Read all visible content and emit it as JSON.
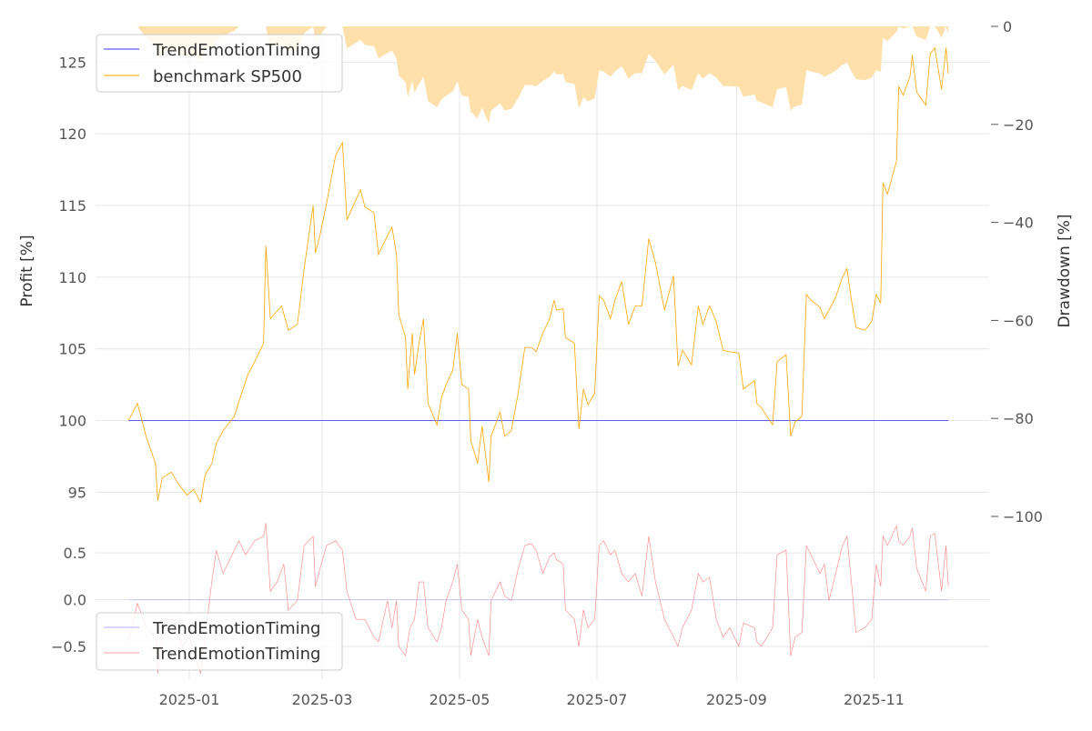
{
  "chart_data": [
    {
      "type": "line",
      "panel": "top",
      "ylabel": "Profit [%]",
      "ylabel_right": "Drawdown [%]",
      "x_unit": "days since 2025-01-01",
      "ylim": [
        93.5,
        127.5
      ],
      "ylim_right": [
        -100,
        0
      ],
      "yticks": [
        95,
        100,
        105,
        110,
        115,
        120,
        125
      ],
      "yticks_right": [
        0,
        -20,
        -40,
        -60,
        -80,
        -100
      ],
      "ytick_labels_right": [
        "0",
        "−20",
        "−40",
        "−60",
        "−80",
        "−100"
      ],
      "grid": true,
      "legend_position": "top-left",
      "legend": [
        "TrendEmotionTiming",
        "benchmark SP500"
      ],
      "series": [
        {
          "name": "TrendEmotionTiming",
          "color": "#3333ff",
          "x": [
            -27,
            337
          ],
          "values": [
            100,
            100
          ]
        },
        {
          "name": "benchmark SP500",
          "color": "#ffa500",
          "x": [
            -27,
            -23,
            -19,
            -15,
            -14,
            -12,
            -8,
            -4,
            -1,
            2,
            5,
            7,
            10,
            12,
            15,
            20,
            22,
            26,
            29,
            33,
            34,
            36,
            41,
            44,
            48,
            51,
            55,
            56,
            58,
            61,
            65,
            68,
            70,
            76,
            78,
            82,
            84,
            88,
            90,
            92,
            93,
            96,
            97,
            99,
            100,
            102,
            104,
            106,
            110,
            112,
            114,
            117,
            119,
            121,
            124,
            125,
            128,
            130,
            133,
            134,
            138,
            140,
            143,
            146,
            149,
            152,
            154,
            157,
            160,
            162,
            163,
            166,
            167,
            171,
            173,
            175,
            177,
            180,
            182,
            184,
            187,
            189,
            192,
            195,
            198,
            201,
            204,
            207,
            211,
            215,
            217,
            219,
            223,
            226,
            228,
            231,
            234,
            237,
            240,
            244,
            246,
            251,
            252,
            254,
            259,
            261,
            265,
            267,
            269,
            272,
            274,
            276,
            280,
            282,
            284,
            287,
            290,
            292,
            294,
            296,
            300,
            303,
            305,
            307,
            308,
            310,
            314,
            315,
            317,
            320,
            321,
            323,
            327,
            329,
            331,
            334,
            336,
            337
          ],
          "values": [
            100,
            101.2,
            98.8,
            97,
            94.4,
            96,
            96.4,
            95.4,
            94.8,
            95.2,
            94.3,
            96.2,
            97,
            98.4,
            99.3,
            100.3,
            101.3,
            103.2,
            104.1,
            105.4,
            112.2,
            107.1,
            108,
            106.3,
            106.7,
            110.6,
            115,
            111.7,
            112.9,
            115.2,
            118.5,
            119.4,
            114,
            116.1,
            114.9,
            114.5,
            111.6,
            112.9,
            113.5,
            111.6,
            107.4,
            105.8,
            102.2,
            106.1,
            103.2,
            105.4,
            107.1,
            101.2,
            99.7,
            101.6,
            102.5,
            103.5,
            106.1,
            102.5,
            102.2,
            98.6,
            97,
            99.6,
            95.7,
            98.9,
            100.6,
            98.9,
            99.3,
            101.9,
            105.1,
            105.1,
            104.8,
            106.1,
            107.1,
            108.4,
            107.7,
            107.8,
            105.8,
            105.4,
            99.4,
            102.2,
            101.1,
            101.9,
            108.7,
            108.4,
            107.1,
            108.4,
            109.7,
            106.7,
            108,
            108,
            112.7,
            111,
            107.7,
            110.1,
            103.8,
            104.9,
            103.9,
            108,
            106.7,
            108,
            106.9,
            104.9,
            104.8,
            104.7,
            102.2,
            102.8,
            101.2,
            100.9,
            99.7,
            104.1,
            104.6,
            98.9,
            99.9,
            100.3,
            108.8,
            108.4,
            107.9,
            107.1,
            107.7,
            108.6,
            110,
            110.6,
            108.4,
            106.5,
            106.3,
            106.9,
            108.8,
            108.2,
            116.6,
            115.8,
            118.1,
            123.3,
            122.7,
            124,
            125.5,
            122.9,
            122,
            125.6,
            126,
            123.1,
            126,
            124.2
          ]
        },
        {
          "name": "drawdown (benchmark SP500)",
          "color": "#ffe0aa",
          "derived_from": "benchmark SP500"
        }
      ]
    },
    {
      "type": "line",
      "panel": "bottom",
      "x_unit": "days since 2025-01-01",
      "ylim": [
        -0.85,
        0.92
      ],
      "yticks": [
        -0.5,
        0.0,
        0.5
      ],
      "ytick_labels": [
        "−0.5",
        "0.0",
        "0.5"
      ],
      "xticks": [
        0,
        59,
        120,
        181,
        243,
        304
      ],
      "xtick_labels": [
        "2025-01",
        "2025-03",
        "2025-05",
        "2025-07",
        "2025-09",
        "2025-11"
      ],
      "grid": true,
      "legend_position": "bottom-left",
      "legend": [
        "TrendEmotionTiming",
        "TrendEmotionTiming"
      ],
      "series": [
        {
          "name": "TrendEmotionTiming",
          "color": "#c8c8ff",
          "x": [
            -27,
            337
          ],
          "values": [
            0,
            0
          ]
        },
        {
          "name": "TrendEmotionTiming",
          "color": "#ff8080",
          "x": [
            -27,
            -23,
            -19,
            -15,
            -14,
            -11,
            -7,
            -3,
            0,
            5,
            7,
            10,
            12,
            15,
            19,
            22,
            25,
            29,
            33,
            34,
            36,
            39,
            42,
            44,
            48,
            51,
            55,
            56,
            58,
            61,
            65,
            68,
            70,
            74,
            78,
            82,
            84,
            88,
            90,
            92,
            93,
            96,
            98,
            100,
            102,
            104,
            106,
            110,
            112,
            114,
            117,
            119,
            121,
            124,
            125,
            128,
            130,
            133,
            134,
            138,
            140,
            143,
            146,
            149,
            152,
            154,
            157,
            160,
            162,
            163,
            166,
            167,
            171,
            173,
            175,
            177,
            180,
            182,
            184,
            187,
            189,
            192,
            195,
            198,
            201,
            204,
            207,
            211,
            215,
            217,
            219,
            223,
            226,
            228,
            231,
            234,
            237,
            240,
            244,
            246,
            251,
            252,
            254,
            259,
            261,
            265,
            267,
            269,
            272,
            274,
            276,
            280,
            282,
            284,
            287,
            290,
            292,
            294,
            296,
            300,
            303,
            305,
            307,
            308,
            310,
            314,
            315,
            317,
            320,
            321,
            323,
            327,
            329,
            331,
            334,
            336,
            337
          ],
          "values": [
            -0.45,
            -0.04,
            -0.3,
            -0.4,
            -0.79,
            -0.21,
            -0.21,
            -0.5,
            -0.4,
            -0.79,
            -0.4,
            0.19,
            0.53,
            0.28,
            0.48,
            0.63,
            0.48,
            0.63,
            0.68,
            0.82,
            0.09,
            0.19,
            0.38,
            -0.11,
            -0.01,
            0.58,
            0.68,
            0.14,
            0.33,
            0.58,
            0.63,
            0.53,
            0.09,
            -0.21,
            -0.21,
            -0.4,
            -0.45,
            -0.01,
            -0.3,
            -0.01,
            -0.5,
            -0.6,
            -0.3,
            -0.21,
            0.19,
            0.19,
            -0.3,
            -0.45,
            -0.3,
            -0.01,
            0.19,
            0.38,
            -0.11,
            -0.21,
            -0.6,
            -0.21,
            -0.4,
            -0.6,
            -0.01,
            0.19,
            0.04,
            -0.01,
            0.33,
            0.58,
            0.6,
            0.53,
            0.28,
            0.46,
            0.5,
            0.43,
            0.38,
            -0.11,
            -0.21,
            -0.5,
            -0.11,
            -0.3,
            -0.21,
            0.58,
            0.63,
            0.48,
            0.53,
            0.28,
            0.19,
            0.28,
            0.04,
            0.68,
            0.19,
            -0.21,
            -0.4,
            -0.5,
            -0.3,
            -0.11,
            0.28,
            0.19,
            0.24,
            -0.21,
            -0.4,
            -0.3,
            -0.5,
            -0.25,
            -0.3,
            -0.45,
            -0.5,
            -0.3,
            0.48,
            0.53,
            -0.6,
            -0.4,
            -0.35,
            0.58,
            0.48,
            0.28,
            0.38,
            -0.01,
            0.28,
            0.58,
            0.68,
            0.19,
            -0.35,
            -0.3,
            -0.21,
            0.38,
            0.14,
            0.68,
            0.58,
            0.79,
            0.63,
            0.58,
            0.68,
            0.77,
            0.33,
            0.09,
            0.68,
            0.71,
            0.09,
            0.58,
            0.14
          ]
        }
      ]
    }
  ]
}
